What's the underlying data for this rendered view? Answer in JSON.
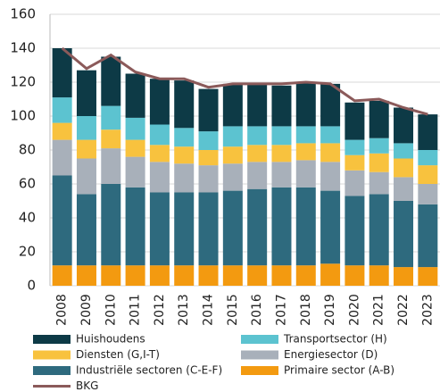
{
  "chart_data": {
    "type": "stacked_bar",
    "categories": [
      "2008",
      "2009",
      "2010",
      "2011",
      "2012",
      "2013",
      "2014",
      "2015",
      "2016",
      "2017",
      "2018",
      "2019",
      "2020",
      "2021",
      "2022",
      "2023"
    ],
    "series": [
      {
        "name": "Primaire sector (A-B)",
        "color": "#f39a10",
        "values": [
          12,
          12,
          12,
          12,
          12,
          12,
          12,
          12,
          12,
          12,
          12,
          13,
          12,
          12,
          11,
          11
        ]
      },
      {
        "name": "Industriële sectoren (C-E-F)",
        "color": "#2e6a7e",
        "values": [
          53,
          42,
          48,
          46,
          43,
          43,
          43,
          44,
          45,
          46,
          46,
          43,
          41,
          42,
          39,
          37
        ]
      },
      {
        "name": "Energiesector (D)",
        "color": "#a8b0ba",
        "values": [
          21,
          21,
          21,
          18,
          18,
          17,
          16,
          16,
          16,
          15,
          16,
          17,
          15,
          13,
          14,
          12
        ]
      },
      {
        "name": "Diensten (G,I-T)",
        "color": "#f8c23e",
        "values": [
          10,
          11,
          11,
          10,
          10,
          10,
          9,
          10,
          10,
          10,
          10,
          11,
          9,
          11,
          11,
          11
        ]
      },
      {
        "name": "Transportsector (H)",
        "color": "#5cc3d0",
        "values": [
          15,
          14,
          14,
          13,
          12,
          11,
          11,
          12,
          11,
          11,
          10,
          10,
          9,
          9,
          9,
          9
        ]
      },
      {
        "name": "Huishoudens",
        "color": "#0d3a46",
        "values": [
          29,
          27,
          29,
          26,
          27,
          28,
          25,
          25,
          25,
          24,
          26,
          25,
          22,
          22,
          21,
          21
        ]
      },
      {
        "name": "BKG",
        "color": "#8b5a5a",
        "type": "line",
        "values": [
          140,
          128,
          136,
          126,
          122,
          122,
          117,
          119,
          119,
          119,
          120,
          119,
          109,
          110,
          105,
          101
        ]
      }
    ],
    "ylim": [
      0,
      160
    ],
    "yticks": [
      0,
      20,
      40,
      60,
      80,
      100,
      120,
      140,
      160
    ],
    "grid": true
  }
}
